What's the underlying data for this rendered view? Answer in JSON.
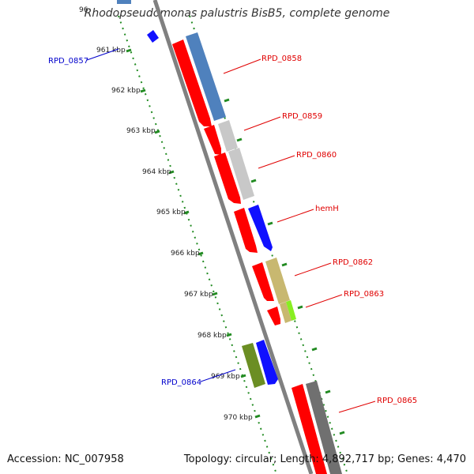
{
  "title": "Rhodopseudomonas palustris BisB5, complete genome",
  "accession": "Accession: NC_007958",
  "topology": "Topology: circular; Length: 4,892,717 bp; Genes: 4,470",
  "colors": {
    "strand_red": "#ff0000",
    "blue_gene": "#1010ff",
    "steelblue_gene": "#4f81bd",
    "lightgray_gene": "#c8c8c8",
    "darkgray_gene": "#707070",
    "khaki_gene": "#c8b870",
    "lime_gene": "#88ee22",
    "olive_gene": "#6b8e23",
    "backbone": "#808080",
    "tick_green": "#228b22",
    "label_red": "#e00000",
    "label_blue": "#0000cc"
  },
  "ticks": [
    "961 kbp",
    "962 kbp",
    "963 kbp",
    "964 kbp",
    "965 kbp",
    "966 kbp",
    "967 kbp",
    "968 kbp",
    "969 kbp",
    "970 kbp"
  ],
  "cut_tick": "96",
  "labels_right": [
    "RPD_0858",
    "RPD_0859",
    "RPD_0860",
    "hemH",
    "RPD_0862",
    "RPD_0863",
    "RPD_0865"
  ],
  "labels_left": [
    "RPD_0857",
    "RPD_0864"
  ]
}
